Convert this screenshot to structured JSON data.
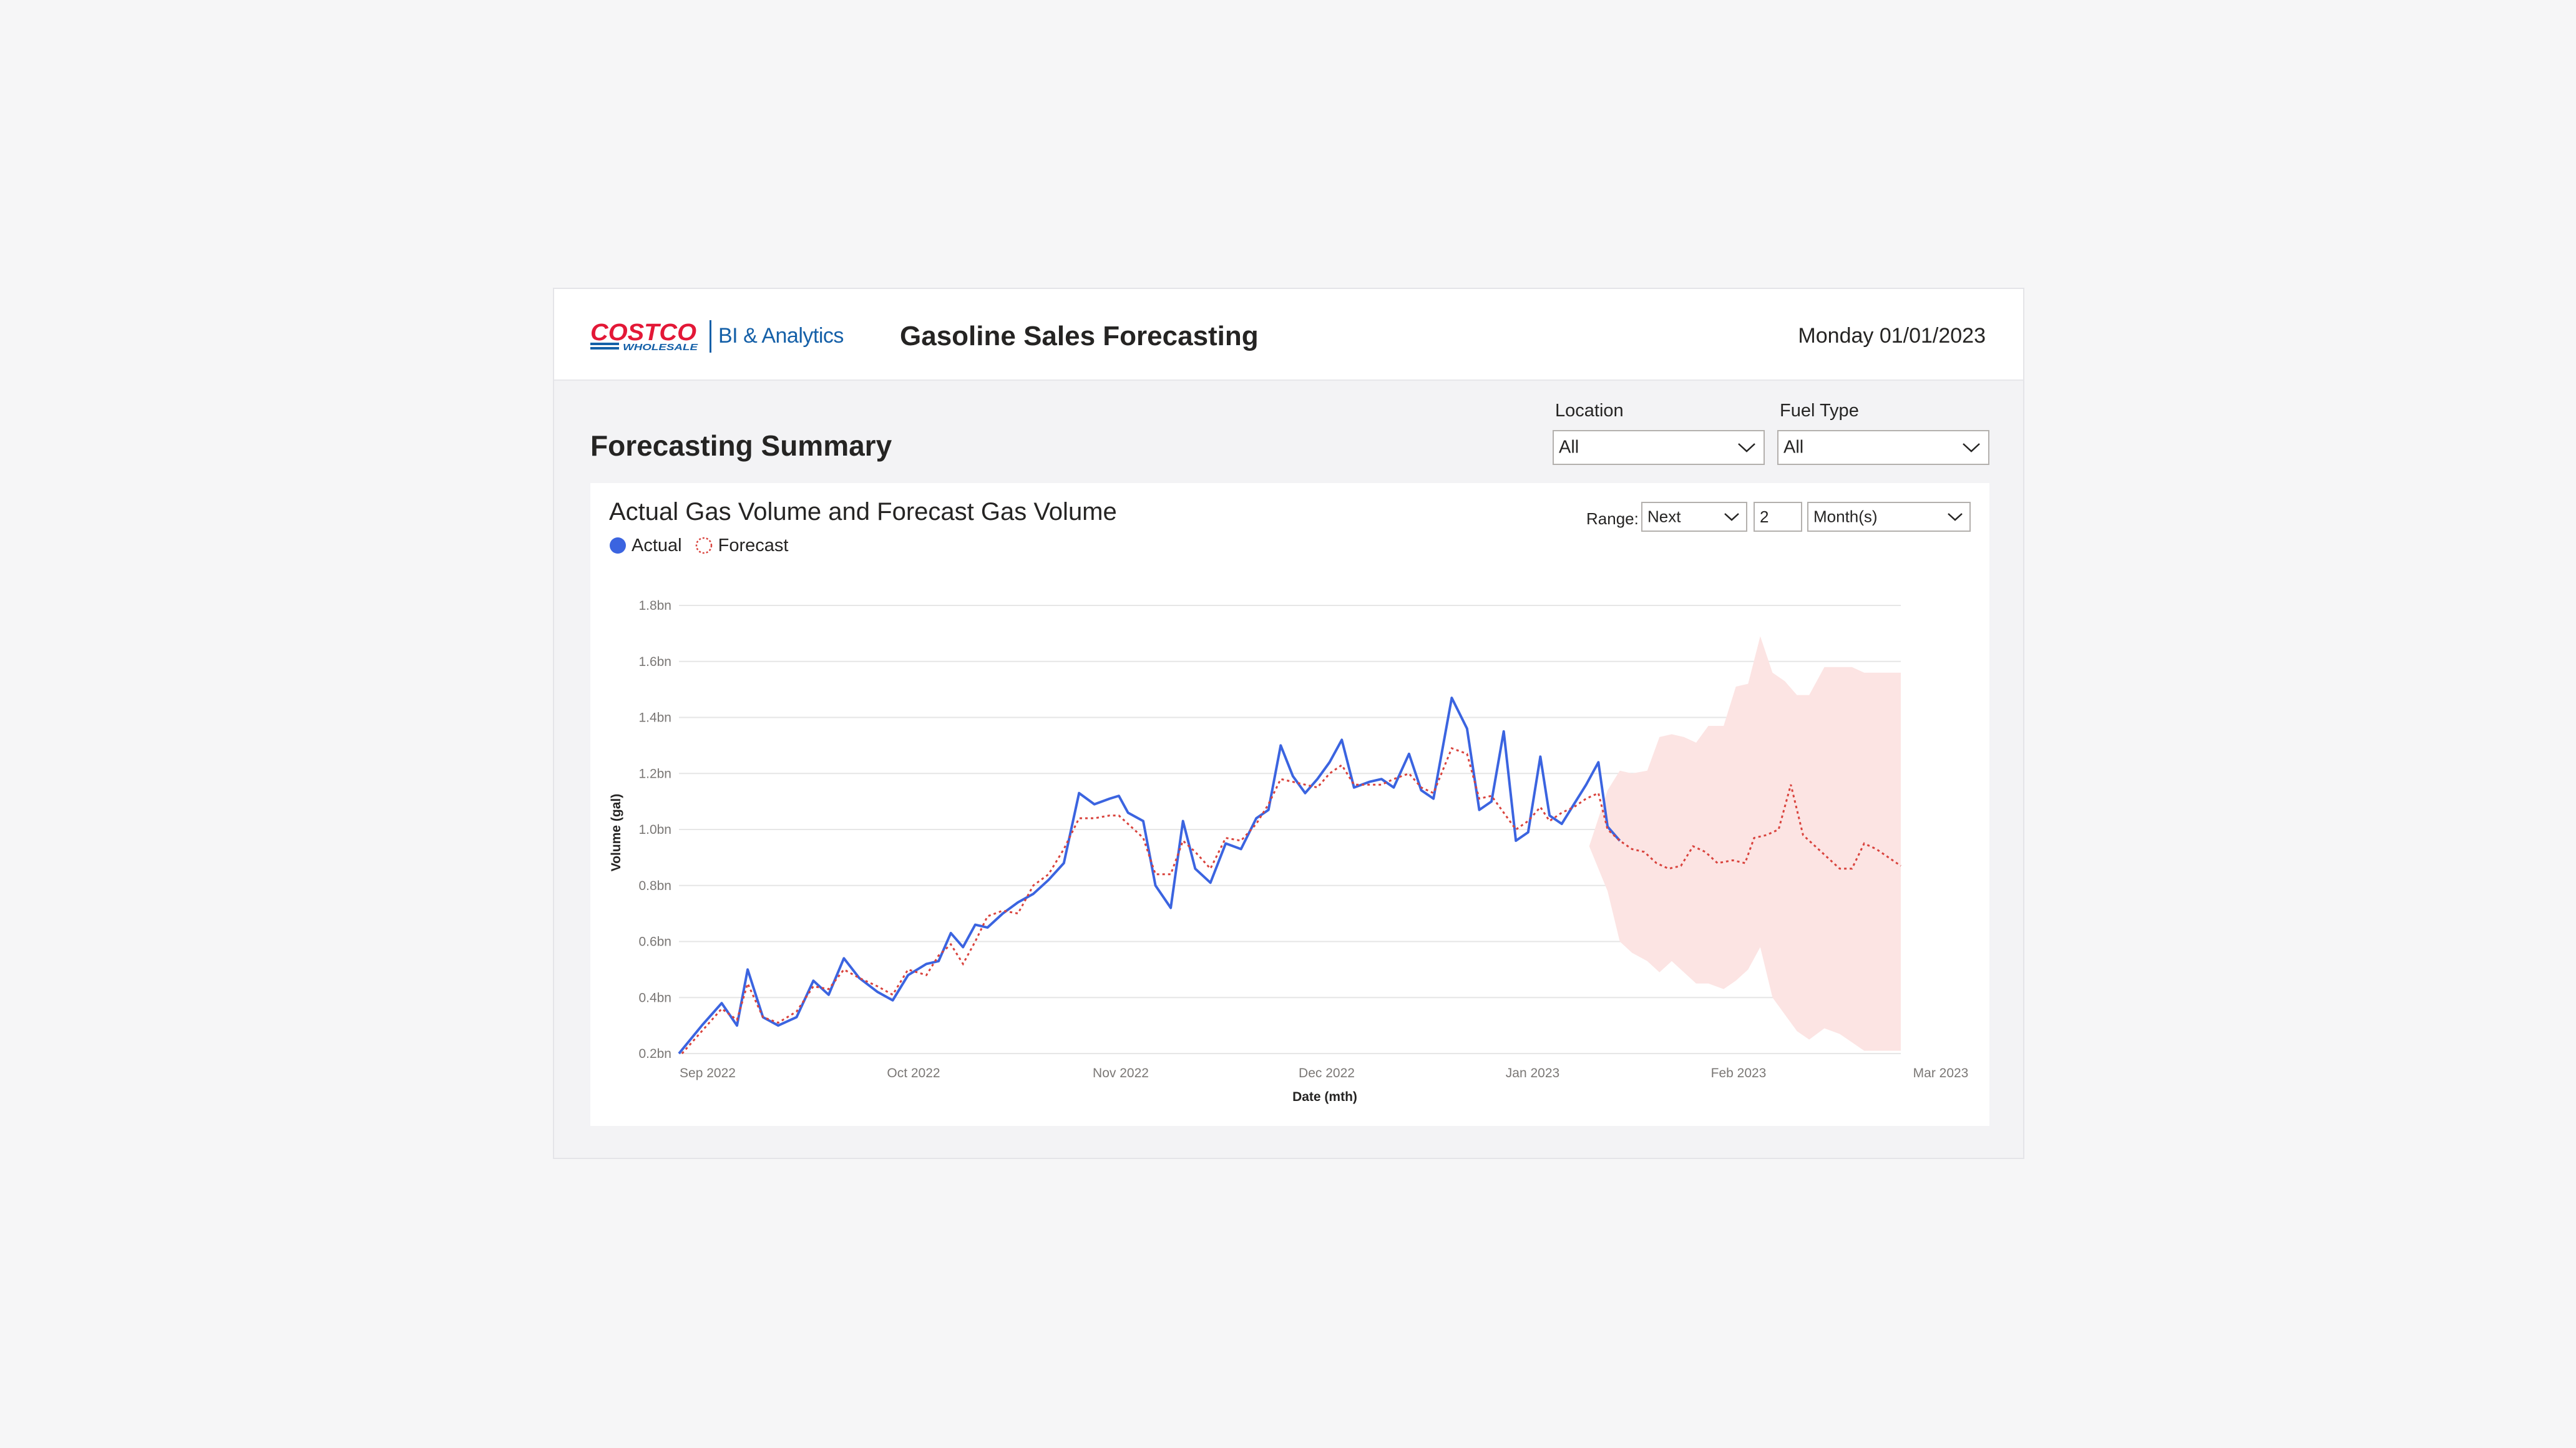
{
  "header": {
    "logo_text": "COSTCO WHOLESALE",
    "bi_label": "BI & Analytics",
    "app_title": "Gasoline Sales Forecasting",
    "date": "Monday 01/01/2023"
  },
  "section_title": "Forecasting Summary",
  "filters": {
    "location": {
      "label": "Location",
      "value": "All"
    },
    "fuel_type": {
      "label": "Fuel Type",
      "value": "All"
    }
  },
  "range_controls": {
    "label": "Range:",
    "direction": "Next",
    "count": "2",
    "unit": "Month(s)"
  },
  "colors": {
    "actual": "#3b64e0",
    "forecast": "#d9433d",
    "band": "#fce4e3",
    "brand_red": "#e31837",
    "brand_blue": "#1560a8"
  },
  "chart_data": {
    "type": "line",
    "title": "Actual Gas Volume and Forecast Gas Volume",
    "xlabel": "Date (mth)",
    "ylabel": "Volume (gal)",
    "ylim": [
      0.2,
      1.8
    ],
    "y_unit": "bn",
    "y_ticks": [
      "0.2bn",
      "0.4bn",
      "0.6bn",
      "0.8bn",
      "1.0bn",
      "1.2bn",
      "1.4bn",
      "1.6bn",
      "1.8bn"
    ],
    "x_ticks": [
      "Sep 2022",
      "Oct 2022",
      "Nov 2022",
      "Dec 2022",
      "Jan 2023",
      "Feb 2023",
      "Mar 2023"
    ],
    "grid": true,
    "legend": "top-left",
    "series": [
      {
        "name": "Actual",
        "style": "solid",
        "points": [
          [
            0,
            0.2
          ],
          [
            0.15,
            0.3
          ],
          [
            0.28,
            0.38
          ],
          [
            0.38,
            0.3
          ],
          [
            0.45,
            0.5
          ],
          [
            0.55,
            0.33
          ],
          [
            0.65,
            0.3
          ],
          [
            0.77,
            0.33
          ],
          [
            0.88,
            0.46
          ],
          [
            0.98,
            0.41
          ],
          [
            1.08,
            0.54
          ],
          [
            1.18,
            0.47
          ],
          [
            1.3,
            0.42
          ],
          [
            1.4,
            0.39
          ],
          [
            1.5,
            0.48
          ],
          [
            1.62,
            0.52
          ],
          [
            1.7,
            0.53
          ],
          [
            1.78,
            0.63
          ],
          [
            1.86,
            0.58
          ],
          [
            1.94,
            0.66
          ],
          [
            2.02,
            0.65
          ],
          [
            2.12,
            0.7
          ],
          [
            2.22,
            0.74
          ],
          [
            2.32,
            0.77
          ],
          [
            2.42,
            0.82
          ],
          [
            2.52,
            0.88
          ],
          [
            2.62,
            1.13
          ],
          [
            2.72,
            1.09
          ],
          [
            2.82,
            1.11
          ],
          [
            2.88,
            1.12
          ],
          [
            2.94,
            1.06
          ],
          [
            3.04,
            1.03
          ],
          [
            3.12,
            0.8
          ],
          [
            3.22,
            0.72
          ],
          [
            3.3,
            1.03
          ],
          [
            3.38,
            0.86
          ],
          [
            3.48,
            0.81
          ],
          [
            3.58,
            0.95
          ],
          [
            3.68,
            0.93
          ],
          [
            3.78,
            1.04
          ],
          [
            3.86,
            1.07
          ],
          [
            3.94,
            1.3
          ],
          [
            4.02,
            1.19
          ],
          [
            4.1,
            1.13
          ],
          [
            4.18,
            1.18
          ],
          [
            4.26,
            1.24
          ],
          [
            4.34,
            1.32
          ],
          [
            4.42,
            1.15
          ],
          [
            4.52,
            1.17
          ],
          [
            4.6,
            1.18
          ],
          [
            4.68,
            1.15
          ],
          [
            4.78,
            1.27
          ],
          [
            4.86,
            1.14
          ],
          [
            4.94,
            1.11
          ],
          [
            5.06,
            1.47
          ],
          [
            5.16,
            1.36
          ],
          [
            5.24,
            1.07
          ],
          [
            5.32,
            1.1
          ],
          [
            5.4,
            1.35
          ],
          [
            5.48,
            0.96
          ],
          [
            5.56,
            0.99
          ],
          [
            5.64,
            1.26
          ],
          [
            5.7,
            1.05
          ],
          [
            5.78,
            1.02
          ],
          [
            5.86,
            1.09
          ],
          [
            5.94,
            1.16
          ],
          [
            6.02,
            1.24
          ],
          [
            6.08,
            1.01
          ],
          [
            6.16,
            0.96
          ]
        ]
      },
      {
        "name": "Forecast",
        "style": "dotted",
        "points": [
          [
            0.02,
            0.2
          ],
          [
            0.15,
            0.28
          ],
          [
            0.28,
            0.36
          ],
          [
            0.38,
            0.32
          ],
          [
            0.45,
            0.45
          ],
          [
            0.55,
            0.33
          ],
          [
            0.65,
            0.31
          ],
          [
            0.77,
            0.35
          ],
          [
            0.88,
            0.44
          ],
          [
            0.98,
            0.43
          ],
          [
            1.08,
            0.5
          ],
          [
            1.18,
            0.47
          ],
          [
            1.3,
            0.44
          ],
          [
            1.4,
            0.41
          ],
          [
            1.5,
            0.5
          ],
          [
            1.62,
            0.48
          ],
          [
            1.7,
            0.55
          ],
          [
            1.78,
            0.59
          ],
          [
            1.86,
            0.52
          ],
          [
            1.94,
            0.6
          ],
          [
            2.02,
            0.69
          ],
          [
            2.12,
            0.71
          ],
          [
            2.22,
            0.7
          ],
          [
            2.32,
            0.8
          ],
          [
            2.42,
            0.84
          ],
          [
            2.52,
            0.93
          ],
          [
            2.62,
            1.04
          ],
          [
            2.72,
            1.04
          ],
          [
            2.82,
            1.05
          ],
          [
            2.88,
            1.05
          ],
          [
            2.94,
            1.02
          ],
          [
            3.04,
            0.97
          ],
          [
            3.12,
            0.84
          ],
          [
            3.22,
            0.84
          ],
          [
            3.3,
            0.96
          ],
          [
            3.38,
            0.92
          ],
          [
            3.48,
            0.86
          ],
          [
            3.58,
            0.97
          ],
          [
            3.68,
            0.96
          ],
          [
            3.78,
            1.02
          ],
          [
            3.86,
            1.09
          ],
          [
            3.94,
            1.18
          ],
          [
            4.02,
            1.17
          ],
          [
            4.1,
            1.16
          ],
          [
            4.18,
            1.15
          ],
          [
            4.26,
            1.2
          ],
          [
            4.34,
            1.23
          ],
          [
            4.42,
            1.16
          ],
          [
            4.52,
            1.16
          ],
          [
            4.6,
            1.16
          ],
          [
            4.68,
            1.18
          ],
          [
            4.78,
            1.2
          ],
          [
            4.86,
            1.15
          ],
          [
            4.94,
            1.13
          ],
          [
            5.06,
            1.29
          ],
          [
            5.16,
            1.27
          ],
          [
            5.24,
            1.11
          ],
          [
            5.32,
            1.12
          ],
          [
            5.4,
            1.06
          ],
          [
            5.48,
            1.0
          ],
          [
            5.56,
            1.03
          ],
          [
            5.64,
            1.08
          ],
          [
            5.7,
            1.03
          ],
          [
            5.78,
            1.06
          ],
          [
            5.86,
            1.08
          ],
          [
            5.94,
            1.11
          ],
          [
            6.02,
            1.13
          ],
          [
            6.08,
            1.0
          ],
          [
            6.16,
            0.96
          ],
          [
            6.24,
            0.93
          ],
          [
            6.32,
            0.92
          ],
          [
            6.4,
            0.88
          ],
          [
            6.48,
            0.86
          ],
          [
            6.56,
            0.87
          ],
          [
            6.64,
            0.94
          ],
          [
            6.72,
            0.92
          ],
          [
            6.8,
            0.88
          ],
          [
            6.9,
            0.89
          ],
          [
            6.98,
            0.88
          ],
          [
            7.04,
            0.97
          ],
          [
            7.12,
            0.98
          ],
          [
            7.2,
            1.0
          ],
          [
            7.28,
            1.16
          ],
          [
            7.36,
            0.98
          ],
          [
            7.44,
            0.94
          ],
          [
            7.52,
            0.9
          ],
          [
            7.6,
            0.86
          ],
          [
            7.68,
            0.86
          ],
          [
            7.76,
            0.95
          ],
          [
            7.84,
            0.93
          ],
          [
            7.92,
            0.9
          ],
          [
            8.0,
            0.87
          ]
        ]
      }
    ],
    "band": {
      "name": "Forecast range",
      "upper": [
        [
          5.96,
          0.94
        ],
        [
          6.08,
          1.14
        ],
        [
          6.16,
          1.21
        ],
        [
          6.24,
          1.2
        ],
        [
          6.34,
          1.21
        ],
        [
          6.42,
          1.33
        ],
        [
          6.5,
          1.34
        ],
        [
          6.58,
          1.33
        ],
        [
          6.66,
          1.31
        ],
        [
          6.74,
          1.37
        ],
        [
          6.84,
          1.37
        ],
        [
          6.92,
          1.51
        ],
        [
          7.0,
          1.52
        ],
        [
          7.08,
          1.69
        ],
        [
          7.16,
          1.56
        ],
        [
          7.24,
          1.53
        ],
        [
          7.32,
          1.48
        ],
        [
          7.4,
          1.48
        ],
        [
          7.5,
          1.58
        ],
        [
          7.6,
          1.58
        ],
        [
          7.68,
          1.58
        ],
        [
          7.76,
          1.56
        ],
        [
          8.0,
          1.56
        ]
      ],
      "lower": [
        [
          5.96,
          0.94
        ],
        [
          6.08,
          0.78
        ],
        [
          6.16,
          0.6
        ],
        [
          6.24,
          0.56
        ],
        [
          6.34,
          0.53
        ],
        [
          6.42,
          0.49
        ],
        [
          6.5,
          0.53
        ],
        [
          6.58,
          0.49
        ],
        [
          6.66,
          0.45
        ],
        [
          6.74,
          0.45
        ],
        [
          6.84,
          0.43
        ],
        [
          6.92,
          0.46
        ],
        [
          7.0,
          0.5
        ],
        [
          7.08,
          0.58
        ],
        [
          7.16,
          0.4
        ],
        [
          7.24,
          0.34
        ],
        [
          7.32,
          0.28
        ],
        [
          7.4,
          0.25
        ],
        [
          7.5,
          0.29
        ],
        [
          7.6,
          0.27
        ],
        [
          7.68,
          0.24
        ],
        [
          7.76,
          0.21
        ],
        [
          8.0,
          0.21
        ]
      ]
    }
  }
}
